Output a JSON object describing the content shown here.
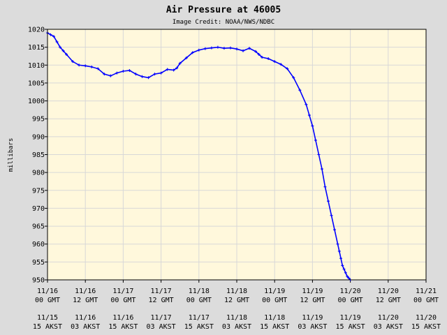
{
  "chart_data": {
    "type": "line",
    "title": "Air Pressure at 46005",
    "subtitle": "Image Credit: NOAA/NWS/NDBC",
    "ylabel": "millibars",
    "xlabel": "",
    "ylim": [
      950,
      1020
    ],
    "yticks": [
      950,
      955,
      960,
      965,
      970,
      975,
      980,
      985,
      990,
      995,
      1000,
      1005,
      1010,
      1015,
      1020
    ],
    "xlim": [
      "11/16 00 GMT",
      "11/21 00 GMT"
    ],
    "grid": true,
    "colors": {
      "plot_bg": "#fff8dc",
      "series": "#0000ff",
      "grid": "#d8d8d8",
      "outer_bg": "#dcdcdc"
    },
    "xticks": [
      {
        "hours": 0,
        "gmt_date": "11/16",
        "gmt_time": "00 GMT",
        "akst_date": "11/15",
        "akst_time": "15 AKST"
      },
      {
        "hours": 12,
        "gmt_date": "11/16",
        "gmt_time": "12 GMT",
        "akst_date": "11/16",
        "akst_time": "03 AKST"
      },
      {
        "hours": 24,
        "gmt_date": "11/17",
        "gmt_time": "00 GMT",
        "akst_date": "11/16",
        "akst_time": "15 AKST"
      },
      {
        "hours": 36,
        "gmt_date": "11/17",
        "gmt_time": "12 GMT",
        "akst_date": "11/17",
        "akst_time": "03 AKST"
      },
      {
        "hours": 48,
        "gmt_date": "11/18",
        "gmt_time": "00 GMT",
        "akst_date": "11/17",
        "akst_time": "15 AKST"
      },
      {
        "hours": 60,
        "gmt_date": "11/18",
        "gmt_time": "12 GMT",
        "akst_date": "11/18",
        "akst_time": "03 AKST"
      },
      {
        "hours": 72,
        "gmt_date": "11/19",
        "gmt_time": "00 GMT",
        "akst_date": "11/18",
        "akst_time": "15 AKST"
      },
      {
        "hours": 84,
        "gmt_date": "11/19",
        "gmt_time": "12 GMT",
        "akst_date": "11/19",
        "akst_time": "03 AKST"
      },
      {
        "hours": 96,
        "gmt_date": "11/20",
        "gmt_time": "00 GMT",
        "akst_date": "11/19",
        "akst_time": "15 AKST"
      },
      {
        "hours": 108,
        "gmt_date": "11/20",
        "gmt_time": "12 GMT",
        "akst_date": "11/20",
        "akst_time": "03 AKST"
      },
      {
        "hours": 120,
        "gmt_date": "11/21",
        "gmt_time": "00 GMT",
        "akst_date": "11/20",
        "akst_time": "15 AKST"
      }
    ],
    "series": [
      {
        "x": [
          0,
          1,
          2,
          3,
          4,
          5,
          6,
          8,
          10,
          12,
          14,
          16,
          18,
          20,
          22,
          24,
          26,
          28,
          30,
          32,
          34,
          36,
          38,
          40,
          41,
          42,
          44,
          46,
          48,
          50,
          52,
          54,
          56,
          58,
          60,
          62,
          64,
          66,
          67,
          68,
          70,
          72,
          74,
          76,
          78,
          80,
          82,
          83,
          84,
          85,
          86,
          87,
          88,
          89,
          90,
          91,
          92,
          92.5,
          93,
          93.5,
          94,
          94.5,
          95,
          95.5,
          96
        ],
        "y": [
          1019,
          1018.5,
          1018,
          1016.5,
          1015,
          1014,
          1013,
          1011,
          1010,
          1009.8,
          1009.5,
          1009,
          1007.5,
          1007,
          1007.8,
          1008.3,
          1008.5,
          1007.5,
          1006.8,
          1006.5,
          1007.5,
          1007.8,
          1008.8,
          1008.6,
          1009.2,
          1010.5,
          1012,
          1013.5,
          1014.2,
          1014.6,
          1014.8,
          1015,
          1014.7,
          1014.8,
          1014.5,
          1014,
          1014.7,
          1013.8,
          1013,
          1012.2,
          1011.8,
          1011,
          1010.2,
          1009,
          1006.5,
          1003,
          999,
          996,
          993,
          989,
          985,
          981,
          976,
          972,
          968,
          964,
          960,
          958,
          956,
          954,
          953,
          952,
          951,
          950.5,
          950
        ]
      }
    ]
  }
}
